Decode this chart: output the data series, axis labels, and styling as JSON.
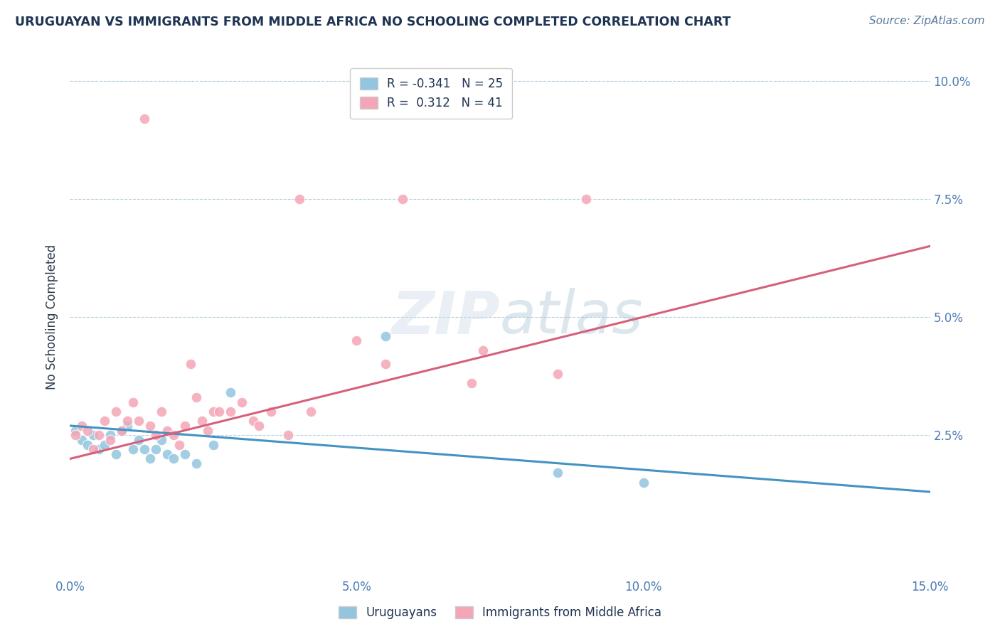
{
  "title": "URUGUAYAN VS IMMIGRANTS FROM MIDDLE AFRICA NO SCHOOLING COMPLETED CORRELATION CHART",
  "source": "Source: ZipAtlas.com",
  "ylabel": "No Schooling Completed",
  "xlim": [
    0.0,
    0.15
  ],
  "ylim": [
    -0.005,
    0.105
  ],
  "xticks": [
    0.0,
    0.05,
    0.1,
    0.15
  ],
  "xtick_labels": [
    "0.0%",
    "5.0%",
    "10.0%",
    "15.0%"
  ],
  "yticks": [
    0.025,
    0.05,
    0.075,
    0.1
  ],
  "ytick_labels": [
    "2.5%",
    "5.0%",
    "7.5%",
    "10.0%"
  ],
  "blue_R": -0.341,
  "blue_N": 25,
  "pink_R": 0.312,
  "pink_N": 41,
  "blue_color": "#92c5de",
  "pink_color": "#f4a6b8",
  "blue_line_color": "#4393c3",
  "pink_line_color": "#d6607a",
  "background_color": "#ffffff",
  "grid_color": "#b8cfe0",
  "title_color": "#1f3352",
  "source_color": "#5a7a9a",
  "axis_tick_color": "#4a7ab5",
  "ylabel_color": "#2a3a4a",
  "legend_label_blue": "Uruguayans",
  "legend_label_pink": "Immigrants from Middle Africa",
  "blue_line_start_y": 0.027,
  "blue_line_end_y": 0.013,
  "pink_line_start_y": 0.02,
  "pink_line_end_y": 0.065,
  "uruguayan_x": [
    0.001,
    0.002,
    0.003,
    0.004,
    0.005,
    0.006,
    0.007,
    0.008,
    0.009,
    0.01,
    0.011,
    0.012,
    0.013,
    0.014,
    0.015,
    0.016,
    0.017,
    0.018,
    0.02,
    0.022,
    0.025,
    0.028,
    0.055,
    0.085,
    0.1
  ],
  "uruguayan_y": [
    0.026,
    0.024,
    0.023,
    0.025,
    0.022,
    0.023,
    0.025,
    0.021,
    0.026,
    0.027,
    0.022,
    0.024,
    0.022,
    0.02,
    0.022,
    0.024,
    0.021,
    0.02,
    0.021,
    0.019,
    0.023,
    0.034,
    0.046,
    0.017,
    0.015
  ],
  "immigrant_x": [
    0.001,
    0.002,
    0.003,
    0.004,
    0.005,
    0.006,
    0.007,
    0.008,
    0.009,
    0.01,
    0.011,
    0.012,
    0.013,
    0.014,
    0.015,
    0.016,
    0.017,
    0.018,
    0.019,
    0.02,
    0.021,
    0.022,
    0.023,
    0.024,
    0.025,
    0.026,
    0.028,
    0.03,
    0.032,
    0.033,
    0.035,
    0.038,
    0.04,
    0.042,
    0.05,
    0.055,
    0.058,
    0.07,
    0.072,
    0.085,
    0.09
  ],
  "immigrant_y": [
    0.025,
    0.027,
    0.026,
    0.022,
    0.025,
    0.028,
    0.024,
    0.03,
    0.026,
    0.028,
    0.032,
    0.028,
    0.092,
    0.027,
    0.025,
    0.03,
    0.026,
    0.025,
    0.023,
    0.027,
    0.04,
    0.033,
    0.028,
    0.026,
    0.03,
    0.03,
    0.03,
    0.032,
    0.028,
    0.027,
    0.03,
    0.025,
    0.075,
    0.03,
    0.045,
    0.04,
    0.075,
    0.036,
    0.043,
    0.038,
    0.075
  ]
}
